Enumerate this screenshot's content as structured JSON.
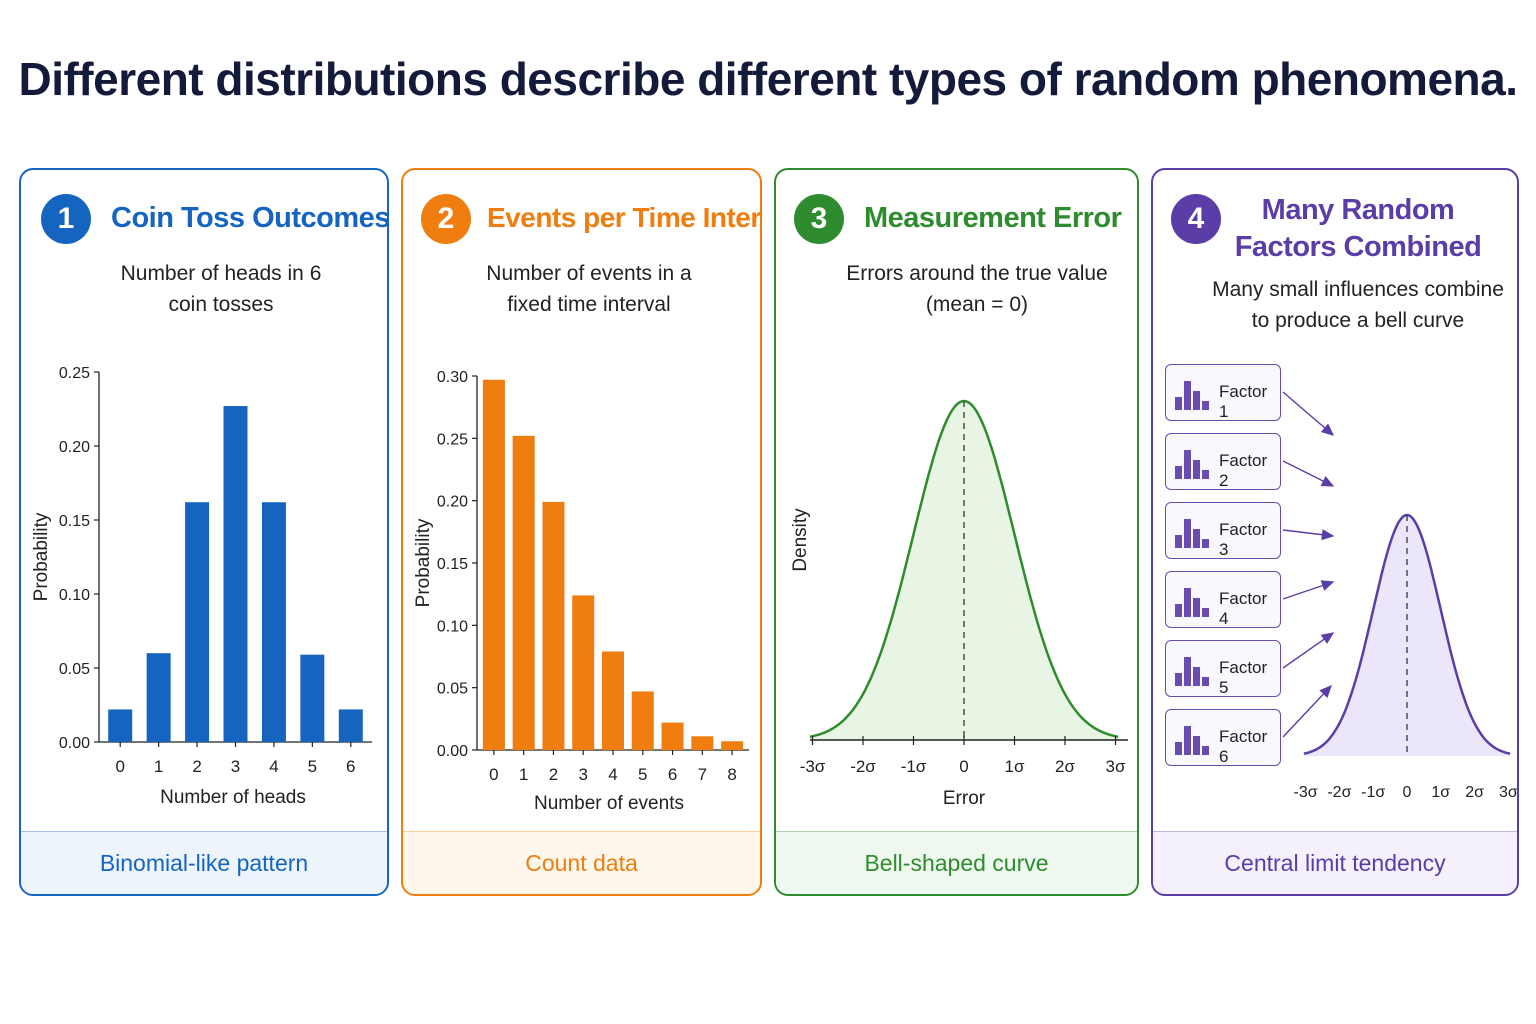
{
  "title": "Different distributions describe different types of random phenomena.",
  "panels": [
    {
      "number": "1",
      "title": "Coin Toss Outcomes",
      "subtitle": "Number of heads in 6\ncoin tosses",
      "footer": "Binomial-like pattern",
      "color": "#1565c0",
      "footer_bg": "#eef4fc"
    },
    {
      "number": "2",
      "title": "Events per Time Interval",
      "subtitle": "Number of events in a\nfixed time interval",
      "footer": "Count data",
      "color": "#ef7d0f",
      "footer_bg": "#fff6ec"
    },
    {
      "number": "3",
      "title": "Measurement Error",
      "subtitle": "Errors around the true value\n(mean = 0)",
      "footer": "Bell-shaped curve",
      "color": "#2e8b2e",
      "footer_bg": "#eef8ee"
    },
    {
      "number": "4",
      "title": "Many Random\nFactors Combined",
      "subtitle": "Many small influences combine\nto produce a bell curve",
      "footer": "Central limit tendency",
      "color": "#5b3da8",
      "footer_bg": "#f4f0fc",
      "factors": [
        "Factor 1",
        "Factor 2",
        "Factor 3",
        "Factor 4",
        "Factor 5",
        "Factor 6"
      ]
    }
  ],
  "chart_data": [
    {
      "type": "bar",
      "categories": [
        "0",
        "1",
        "2",
        "3",
        "4",
        "5",
        "6"
      ],
      "values": [
        0.022,
        0.06,
        0.162,
        0.227,
        0.162,
        0.059,
        0.022
      ],
      "xlabel": "Number of heads",
      "ylabel": "Probability",
      "ylim": [
        0,
        0.25
      ],
      "yticks": [
        "0.00",
        "0.05",
        "0.10",
        "0.15",
        "0.20",
        "0.25"
      ],
      "color": "#1565c0"
    },
    {
      "type": "bar",
      "categories": [
        "0",
        "1",
        "2",
        "3",
        "4",
        "5",
        "6",
        "7",
        "8"
      ],
      "values": [
        0.297,
        0.252,
        0.199,
        0.124,
        0.079,
        0.047,
        0.022,
        0.011,
        0.007
      ],
      "xlabel": "Number of events",
      "ylabel": "Probability",
      "ylim": [
        0,
        0.3
      ],
      "yticks": [
        "0.00",
        "0.05",
        "0.10",
        "0.15",
        "0.20",
        "0.25",
        "0.30"
      ],
      "color": "#ef7d0f"
    },
    {
      "type": "area",
      "x": "normal density, mean 0",
      "xticks": [
        "-3σ",
        "-2σ",
        "-1σ",
        "0",
        "1σ",
        "2σ",
        "3σ"
      ],
      "xlabel": "Error",
      "ylabel": "Density",
      "mean": 0,
      "color": "#2e8b2e",
      "fill": "#e8f5e4"
    },
    {
      "type": "area",
      "x": "normal density, mean 0",
      "xticks": [
        "-3σ",
        "-2σ",
        "-1σ",
        "0",
        "1σ",
        "2σ",
        "3σ"
      ],
      "xlabel": "",
      "ylabel": "",
      "mean": 0,
      "color": "#5b3da8",
      "fill": "#ece6fa"
    }
  ]
}
